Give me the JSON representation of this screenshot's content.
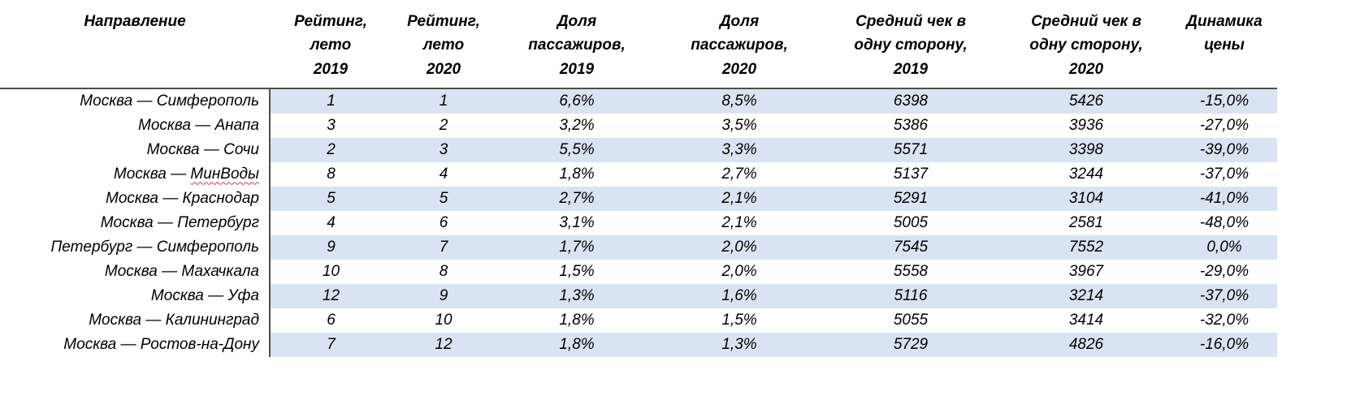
{
  "chart_data": {
    "type": "table",
    "title": "",
    "columns": [
      "Направление",
      "Рейтинг,\nлето\n2019",
      "Рейтинг,\nлето\n2020",
      "Доля\nпассажиров,\n2019",
      "Доля\nпассажиров,\n2020",
      "Средний чек в\nодну сторону,\n2019",
      "Средний чек в\nодну сторону,\n2020",
      "Динамика\nцены"
    ],
    "rows": [
      [
        "Москва — Симферополь",
        "1",
        "1",
        "6,6%",
        "8,5%",
        "6398",
        "5426",
        "-15,0%"
      ],
      [
        "Москва — Анапа",
        "3",
        "2",
        "3,2%",
        "3,5%",
        "5386",
        "3936",
        "-27,0%"
      ],
      [
        "Москва — Сочи",
        "2",
        "3",
        "5,5%",
        "3,3%",
        "5571",
        "3398",
        "-39,0%"
      ],
      [
        "Москва — МинВоды",
        "8",
        "4",
        "1,8%",
        "2,7%",
        "5137",
        "3244",
        "-37,0%"
      ],
      [
        "Москва — Краснодар",
        "5",
        "5",
        "2,7%",
        "2,1%",
        "5291",
        "3104",
        "-41,0%"
      ],
      [
        "Москва — Петербург",
        "4",
        "6",
        "3,1%",
        "2,1%",
        "5005",
        "2581",
        "-48,0%"
      ],
      [
        "Петербург — Симферополь",
        "9",
        "7",
        "1,7%",
        "2,0%",
        "7545",
        "7552",
        "0,0%"
      ],
      [
        "Москва — Махачкала",
        "10",
        "8",
        "1,5%",
        "2,0%",
        "5558",
        "3967",
        "-29,0%"
      ],
      [
        "Москва — Уфа",
        "12",
        "9",
        "1,3%",
        "1,6%",
        "5116",
        "3214",
        "-37,0%"
      ],
      [
        "Москва — Калининград",
        "6",
        "10",
        "1,8%",
        "1,5%",
        "5055",
        "3414",
        "-32,0%"
      ],
      [
        "Москва — Ростов-на-Дону",
        "7",
        "12",
        "1,8%",
        "1,3%",
        "5729",
        "4826",
        "-16,0%"
      ]
    ],
    "spellcheck_underline": {
      "row": 3,
      "substring": "МинВоды"
    },
    "layout": {
      "banded_rows": true,
      "band_color": "#dae3f3",
      "header_border_color": "#4d4d4d",
      "first_column_align": "right",
      "value_align": "center"
    }
  }
}
